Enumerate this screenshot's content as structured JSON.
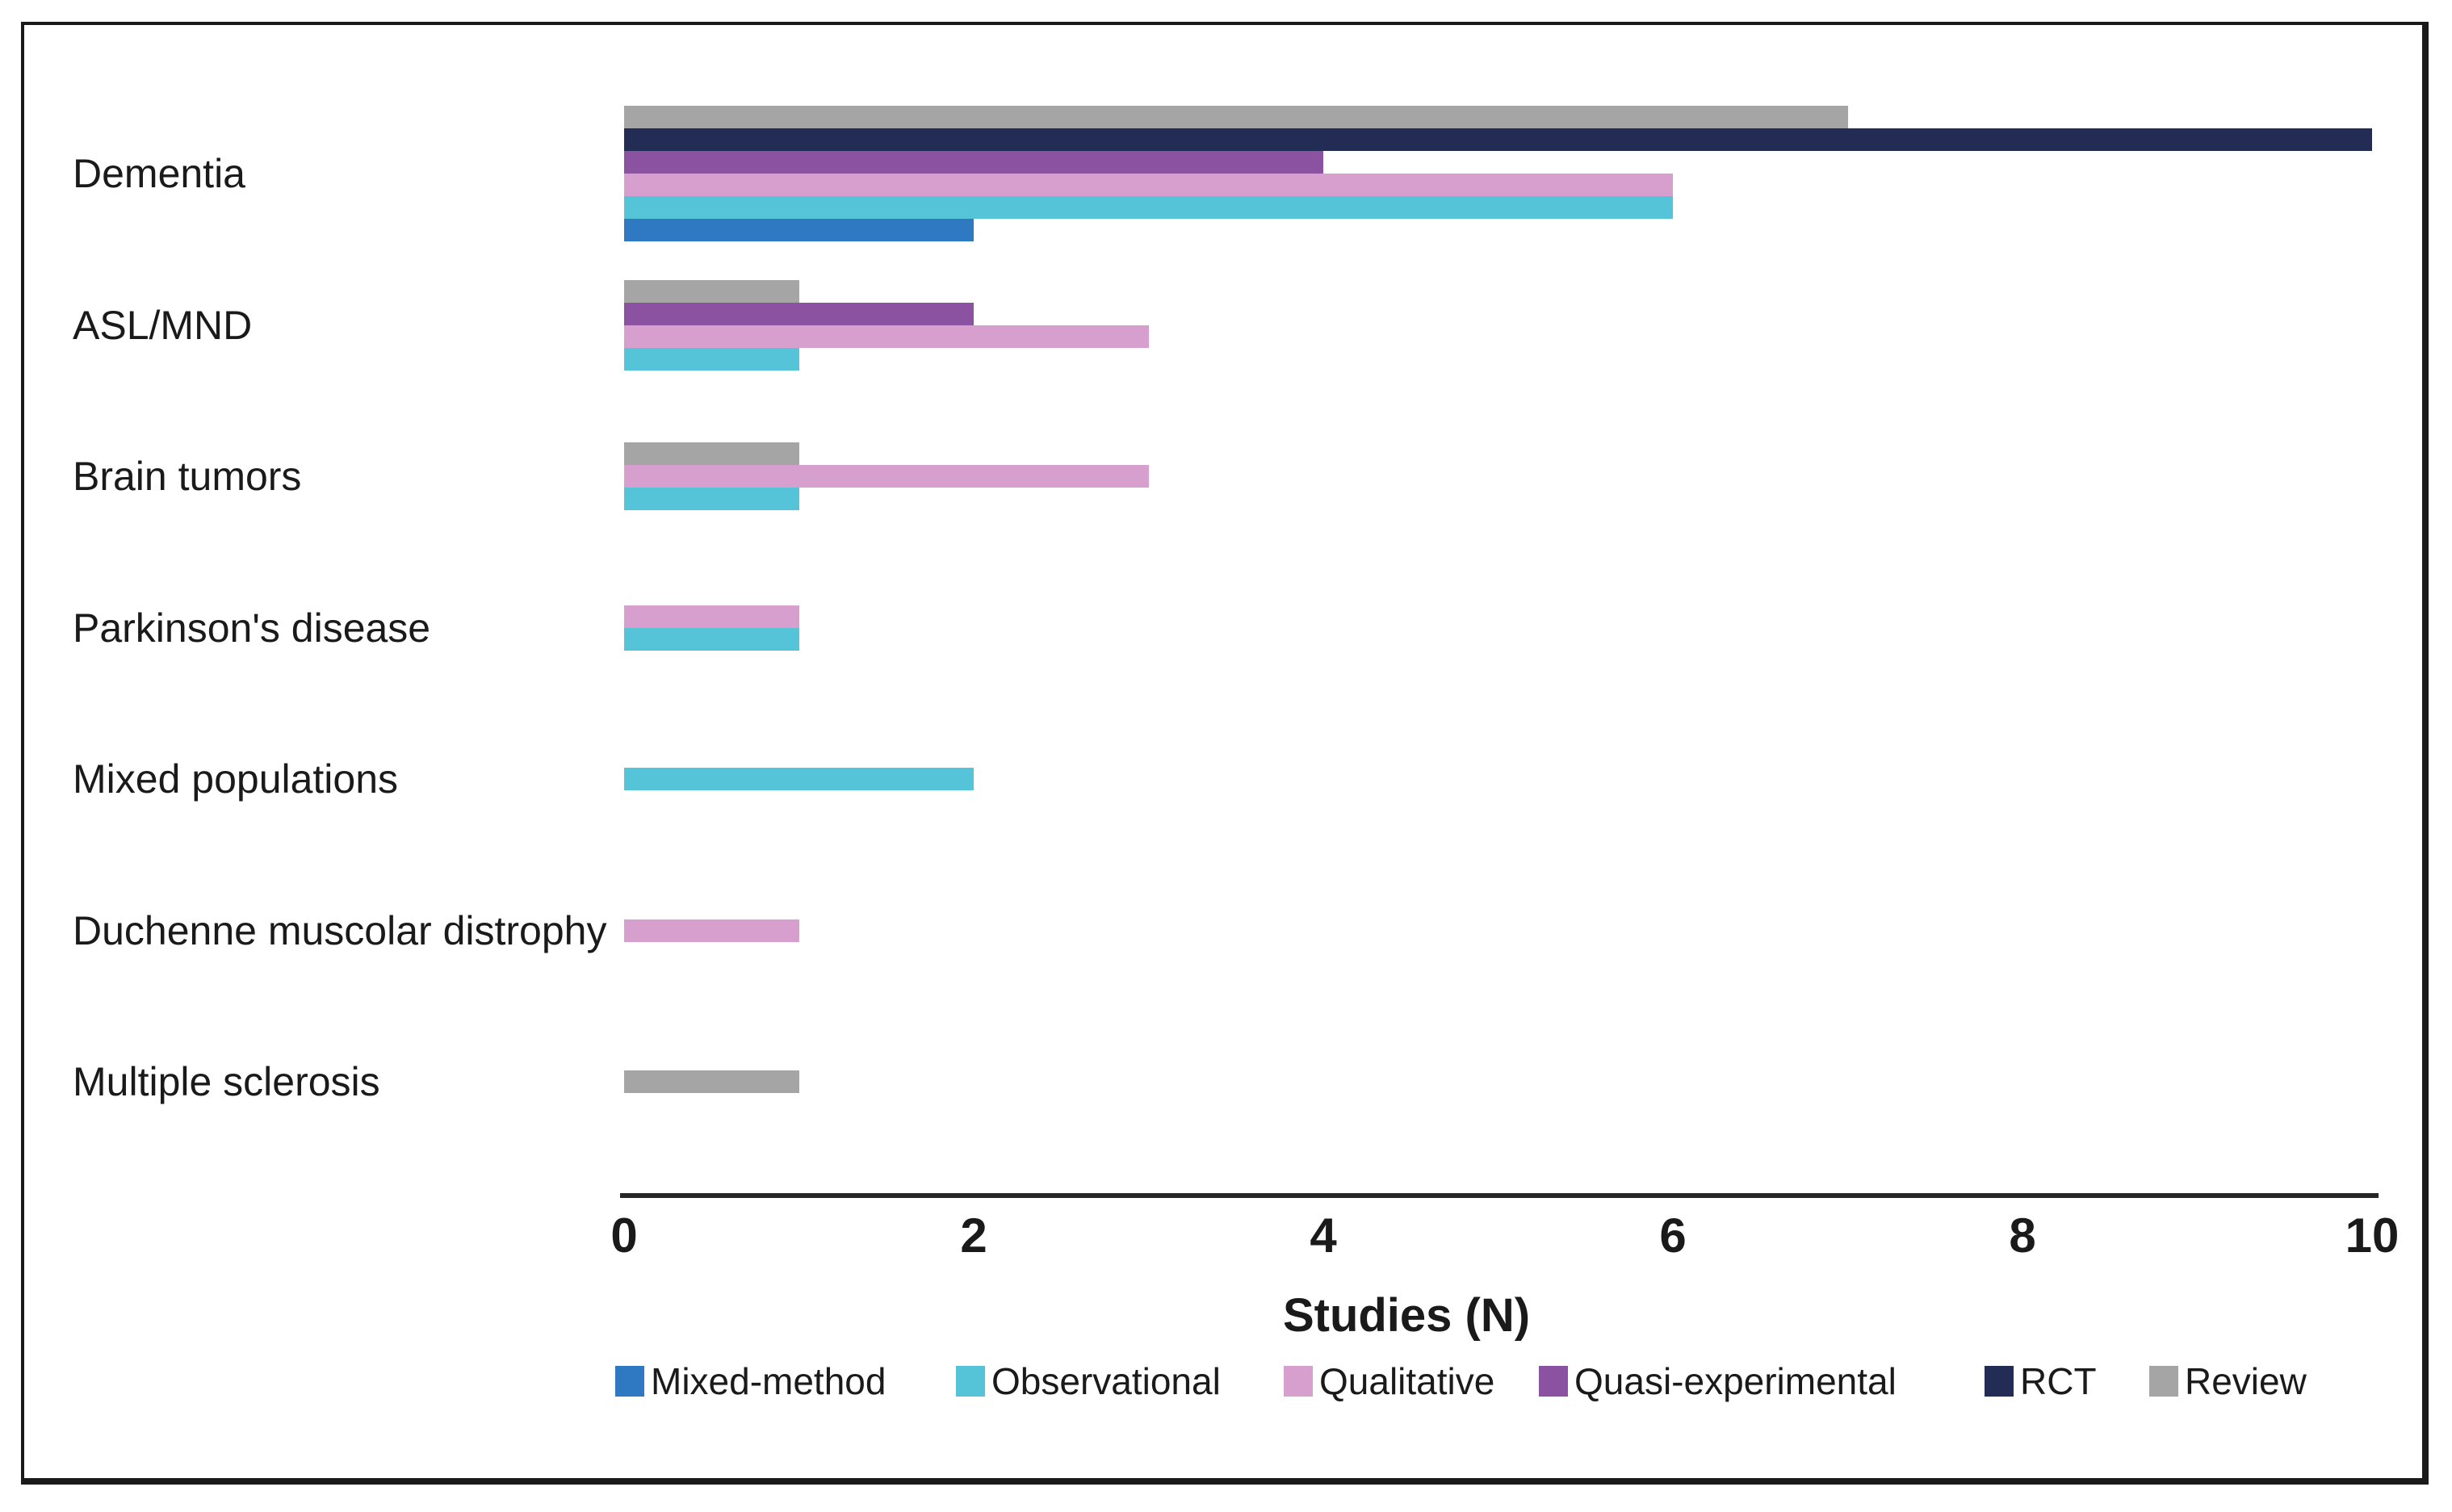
{
  "figure": {
    "background_color": "#ffffff",
    "frame_border_color": "#1a1a1a",
    "text_color": "#1a1a1a",
    "axis_line_color": "#262626"
  },
  "chart_data": {
    "type": "bar",
    "orientation": "horizontal",
    "xlabel": "Studies (N)",
    "xlim": [
      0,
      10
    ],
    "xticks": [
      "0",
      "2",
      "4",
      "6",
      "8",
      "10"
    ],
    "grid": false,
    "legend_position": "bottom",
    "categories": [
      "Dementia",
      "ASL/MND",
      "Brain tumors",
      "Parkinson's disease",
      "Mixed populations",
      "Duchenne muscolar distrophy",
      "Multiple sclerosis"
    ],
    "series": [
      {
        "name": "Mixed-method",
        "color": "#2f78c2",
        "values": [
          2,
          0,
          0,
          0,
          0,
          0,
          0
        ]
      },
      {
        "name": "Observational",
        "color": "#55c3d8",
        "values": [
          6,
          1,
          1,
          1,
          2,
          0,
          0
        ]
      },
      {
        "name": "Qualitative",
        "color": "#d69fce",
        "values": [
          6,
          3,
          3,
          1,
          0,
          1,
          0
        ]
      },
      {
        "name": "Quasi-experimental",
        "color": "#8b52a1",
        "values": [
          4,
          2,
          0,
          0,
          0,
          0,
          0
        ]
      },
      {
        "name": "RCT",
        "color": "#232c55",
        "values": [
          10,
          0,
          0,
          0,
          0,
          0,
          0
        ]
      },
      {
        "name": "Review",
        "color": "#a5a5a5",
        "values": [
          7,
          1,
          1,
          0,
          0,
          0,
          1
        ]
      }
    ],
    "bar_order_top_to_bottom": [
      "Review",
      "RCT",
      "Quasi-experimental",
      "Qualitative",
      "Observational",
      "Mixed-method"
    ],
    "zero_value_bars_hidden": true
  }
}
